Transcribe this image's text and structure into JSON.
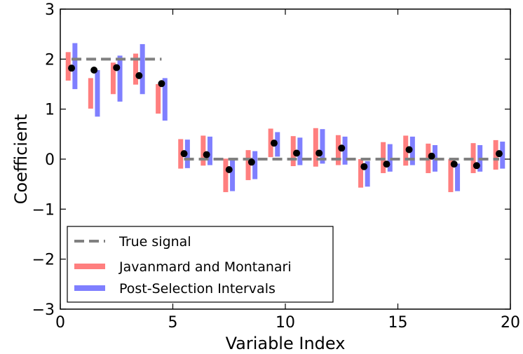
{
  "chart_data": {
    "type": "scatter",
    "title": "",
    "xlabel": "Variable Index",
    "ylabel": "Coefficient",
    "xlim": [
      0,
      20
    ],
    "ylim": [
      -3,
      3
    ],
    "xticks": [
      0,
      5,
      10,
      15,
      20
    ],
    "yticks": [
      3,
      2,
      1,
      0,
      -1,
      -2,
      -3
    ],
    "ytick_labels": [
      "3",
      "2",
      "1",
      "0",
      "−1",
      "−2",
      "−3"
    ],
    "grid": false,
    "legend": {
      "placement": "lower-left",
      "entries": [
        {
          "label": "True signal",
          "color": "#808080",
          "style": "dashed"
        },
        {
          "label": "Javanmard and Montanari",
          "color": "#ff7f7f",
          "style": "solid"
        },
        {
          "label": "Post-Selection Intervals",
          "color": "#7f7fff",
          "style": "solid"
        }
      ]
    },
    "true_signal": [
      {
        "x_start": 0.5,
        "x_end": 4.5,
        "value": 2
      },
      {
        "x_start": 5.5,
        "x_end": 19.5,
        "value": 0
      }
    ],
    "x": [
      0.5,
      1.5,
      2.5,
      3.5,
      4.5,
      5.5,
      6.5,
      7.5,
      8.5,
      9.5,
      10.5,
      11.5,
      12.5,
      13.5,
      14.5,
      15.5,
      16.5,
      17.5,
      18.5,
      19.5
    ],
    "estimates": [
      1.82,
      1.78,
      1.83,
      1.67,
      1.51,
      0.11,
      0.09,
      -0.21,
      -0.06,
      0.32,
      0.12,
      0.12,
      0.22,
      -0.15,
      -0.1,
      0.19,
      0.06,
      -0.1,
      -0.13,
      0.11
    ],
    "series": [
      {
        "name": "Javanmard and Montanari",
        "color": "#ff7f7f",
        "offset": -0.15,
        "lower": [
          1.57,
          1.01,
          1.3,
          1.49,
          0.91,
          -0.19,
          -0.13,
          -0.66,
          -0.42,
          0.04,
          -0.14,
          -0.15,
          -0.12,
          -0.57,
          -0.28,
          -0.13,
          -0.28,
          -0.66,
          -0.28,
          -0.21
        ],
        "upper": [
          2.14,
          1.62,
          1.93,
          2.11,
          1.5,
          0.4,
          0.47,
          0.01,
          0.18,
          0.61,
          0.46,
          0.62,
          0.48,
          0.0,
          0.34,
          0.47,
          0.31,
          0.0,
          0.32,
          0.38
        ]
      },
      {
        "name": "Post-Selection Intervals",
        "color": "#7f7fff",
        "offset": 0.15,
        "lower": [
          1.4,
          0.85,
          1.15,
          1.3,
          0.77,
          -0.18,
          -0.12,
          -0.64,
          -0.4,
          0.05,
          -0.12,
          -0.09,
          -0.11,
          -0.55,
          -0.25,
          -0.12,
          -0.25,
          -0.64,
          -0.25,
          -0.19
        ],
        "upper": [
          2.32,
          1.78,
          2.07,
          2.3,
          1.62,
          0.39,
          0.45,
          0.0,
          0.16,
          0.54,
          0.43,
          0.6,
          0.45,
          -0.04,
          0.3,
          0.45,
          0.28,
          -0.09,
          0.28,
          0.35
        ]
      }
    ]
  }
}
